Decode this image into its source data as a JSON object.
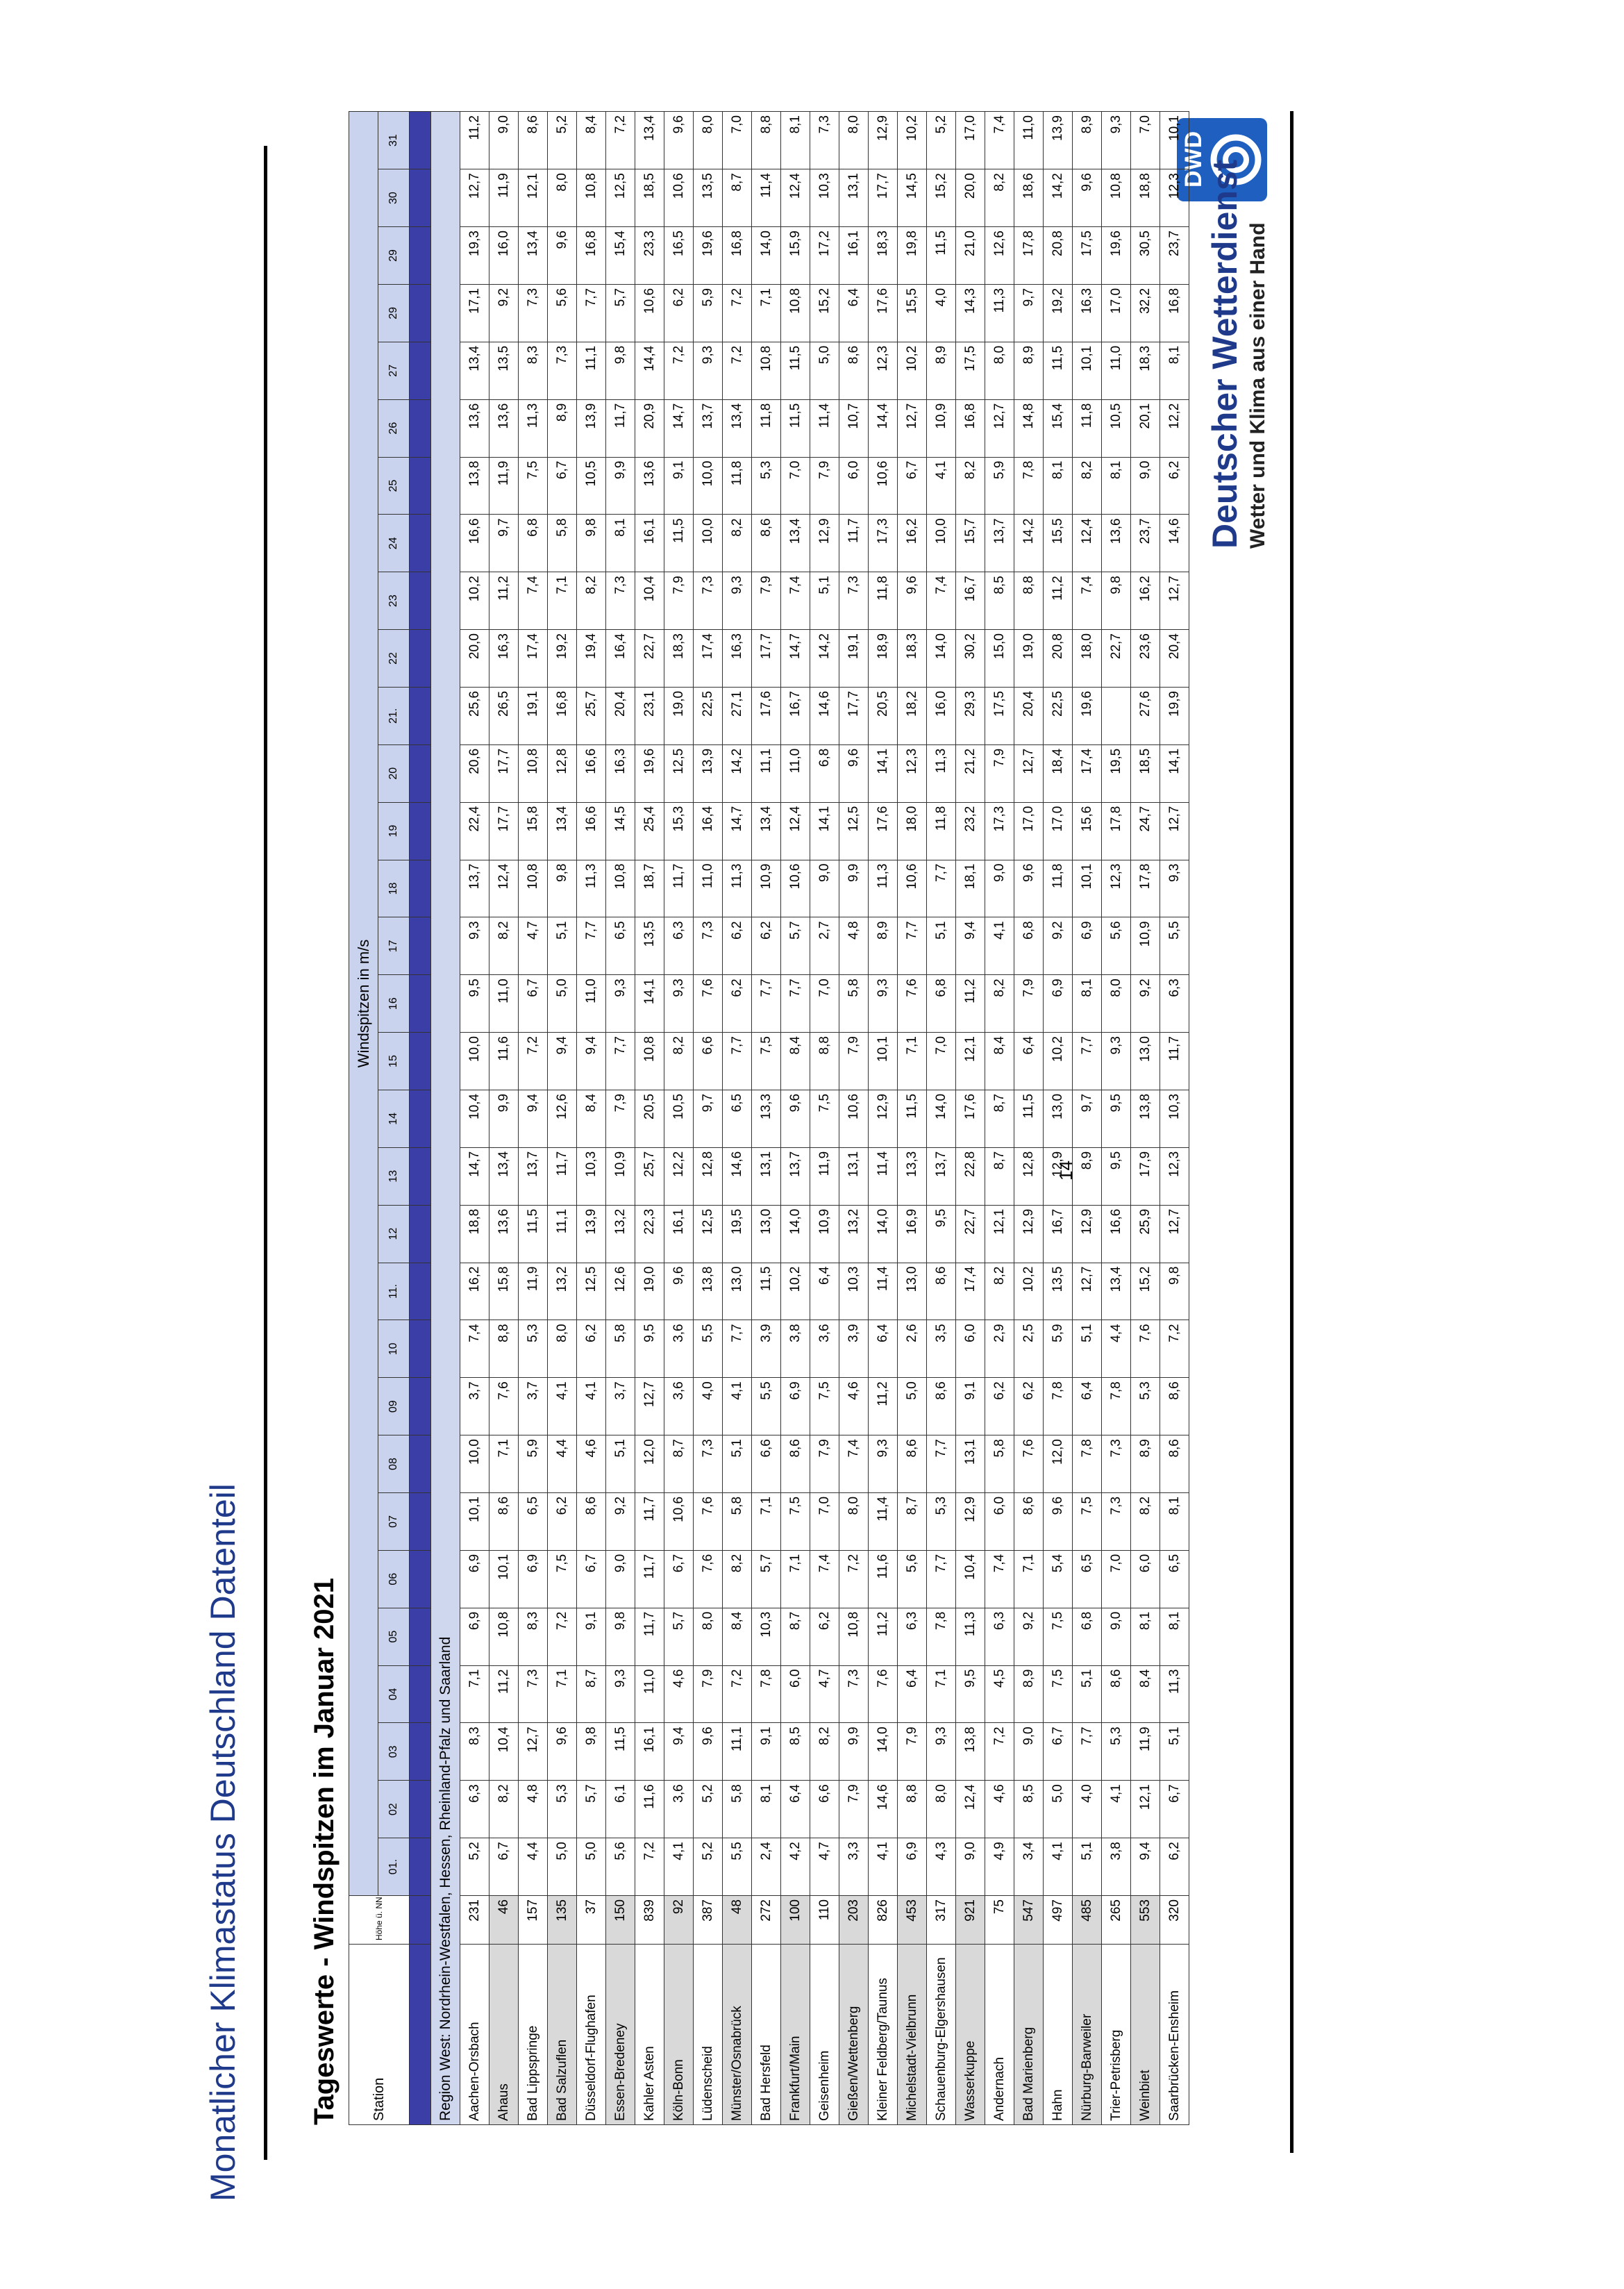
{
  "page": {
    "title": "Monatlicher Klimastatus Deutschland Datenteil",
    "page_number": "14"
  },
  "brand": {
    "logo_text": "DWD",
    "name": "Deutscher Wetterdienst",
    "tagline": "Wetter und Klima aus einer Hand",
    "color": "#1f3a8a"
  },
  "sheet": {
    "title": "Tageswerte - Windspitzen im Januar 2021",
    "group_header": "Windspitzen in m/s",
    "col_station": "Station",
    "col_height": "Höhe ü. NN in m",
    "days": [
      "01.",
      "02",
      "03",
      "04",
      "05",
      "06",
      "07",
      "08",
      "09",
      "10",
      "11.",
      "12",
      "13",
      "14",
      "15",
      "16",
      "17",
      "18",
      "19",
      "20",
      "21.",
      "22",
      "23",
      "24",
      "25",
      "26",
      "27",
      "29",
      "29",
      "30",
      "31"
    ],
    "region": "Region West: Nordrhein-Westfalen, Hessen, Rheinland-Pfalz und Saarland"
  },
  "rows": [
    {
      "station": "Aachen-Orsbach",
      "height": "231",
      "v": [
        "5,2",
        "6,3",
        "8,3",
        "7,1",
        "6,9",
        "6,9",
        "10,1",
        "10,0",
        "3,7",
        "7,4",
        "16,2",
        "18,8",
        "14,7",
        "10,4",
        "10,0",
        "9,5",
        "9,3",
        "13,7",
        "22,4",
        "20,6",
        "25,6",
        "20,0",
        "10,2",
        "16,6",
        "13,8",
        "13,6",
        "13,4",
        "17,1",
        "19,3",
        "12,7",
        "11,2"
      ]
    },
    {
      "station": "Ahaus",
      "height": "46",
      "v": [
        "6,7",
        "8,2",
        "10,4",
        "11,2",
        "10,8",
        "10,1",
        "8,6",
        "7,1",
        "7,6",
        "8,8",
        "15,8",
        "13,6",
        "13,4",
        "9,9",
        "11,6",
        "11,0",
        "8,2",
        "12,4",
        "17,7",
        "17,7",
        "26,5",
        "16,3",
        "11,2",
        "9,7",
        "11,9",
        "13,6",
        "13,5",
        "9,2",
        "16,0",
        "11,9",
        "9,0"
      ]
    },
    {
      "station": "Bad Lippspringe",
      "height": "157",
      "v": [
        "4,4",
        "4,8",
        "12,7",
        "7,3",
        "8,3",
        "6,9",
        "6,5",
        "5,9",
        "3,7",
        "5,3",
        "11,9",
        "11,5",
        "13,7",
        "9,4",
        "7,2",
        "6,7",
        "4,7",
        "10,8",
        "15,8",
        "10,8",
        "19,1",
        "17,4",
        "7,4",
        "6,8",
        "7,5",
        "11,3",
        "8,3",
        "7,3",
        "13,4",
        "12,1",
        "8,6"
      ]
    },
    {
      "station": "Bad Salzuflen",
      "height": "135",
      "v": [
        "5,0",
        "5,3",
        "9,6",
        "7,1",
        "7,2",
        "7,5",
        "6,2",
        "4,4",
        "4,1",
        "8,0",
        "13,2",
        "11,1",
        "11,7",
        "12,6",
        "9,4",
        "5,0",
        "5,1",
        "9,8",
        "13,4",
        "12,8",
        "16,8",
        "19,2",
        "7,1",
        "5,8",
        "6,7",
        "8,9",
        "7,3",
        "5,6",
        "9,6",
        "8,0",
        "5,2"
      ]
    },
    {
      "station": "Düsseldorf-Flughafen",
      "height": "37",
      "v": [
        "5,0",
        "5,7",
        "9,8",
        "8,7",
        "9,1",
        "6,7",
        "8,6",
        "4,6",
        "4,1",
        "6,2",
        "12,5",
        "13,9",
        "10,3",
        "8,4",
        "9,4",
        "11,0",
        "7,7",
        "11,3",
        "16,6",
        "16,6",
        "25,7",
        "19,4",
        "8,2",
        "9,8",
        "10,5",
        "13,9",
        "11,1",
        "7,7",
        "16,8",
        "10,8",
        "8,4"
      ]
    },
    {
      "station": "Essen-Bredeney",
      "height": "150",
      "v": [
        "5,6",
        "6,1",
        "11,5",
        "9,3",
        "9,8",
        "9,0",
        "9,2",
        "5,1",
        "3,7",
        "5,8",
        "12,6",
        "13,2",
        "10,9",
        "7,9",
        "7,7",
        "9,3",
        "6,5",
        "10,8",
        "14,5",
        "16,3",
        "20,4",
        "16,4",
        "7,3",
        "8,1",
        "9,9",
        "11,7",
        "9,8",
        "5,7",
        "15,4",
        "12,5",
        "7,2"
      ]
    },
    {
      "station": "Kahler Asten",
      "height": "839",
      "v": [
        "7,2",
        "11,6",
        "16,1",
        "11,0",
        "11,7",
        "11,7",
        "11,7",
        "12,0",
        "12,7",
        "9,5",
        "19,0",
        "22,3",
        "25,7",
        "20,5",
        "10,8",
        "14,1",
        "13,5",
        "18,7",
        "25,4",
        "19,6",
        "23,1",
        "22,7",
        "10,4",
        "16,1",
        "13,6",
        "20,9",
        "14,4",
        "10,6",
        "23,3",
        "18,5",
        "13,4"
      ]
    },
    {
      "station": "Köln-Bonn",
      "height": "92",
      "v": [
        "4,1",
        "3,6",
        "9,4",
        "4,6",
        "5,7",
        "6,7",
        "10,6",
        "8,7",
        "3,6",
        "3,6",
        "9,6",
        "16,1",
        "12,2",
        "10,5",
        "8,2",
        "9,3",
        "6,3",
        "11,7",
        "15,3",
        "12,5",
        "19,0",
        "18,3",
        "7,9",
        "11,5",
        "9,1",
        "14,7",
        "7,2",
        "6,2",
        "16,5",
        "10,6",
        "9,6"
      ]
    },
    {
      "station": "Lüdenscheid",
      "height": "387",
      "v": [
        "5,2",
        "5,2",
        "9,6",
        "7,9",
        "8,0",
        "7,6",
        "7,6",
        "7,3",
        "4,0",
        "5,5",
        "13,8",
        "12,5",
        "12,8",
        "9,7",
        "6,6",
        "7,6",
        "7,3",
        "11,0",
        "16,4",
        "13,9",
        "22,5",
        "17,4",
        "7,3",
        "10,0",
        "10,0",
        "13,7",
        "9,3",
        "5,9",
        "19,6",
        "13,5",
        "8,0"
      ]
    },
    {
      "station": "Münster/Osnabrück",
      "height": "48",
      "v": [
        "5,5",
        "5,8",
        "11,1",
        "7,2",
        "8,4",
        "8,2",
        "5,8",
        "5,1",
        "4,1",
        "7,7",
        "13,0",
        "19,5",
        "14,6",
        "6,5",
        "7,7",
        "6,2",
        "6,2",
        "11,3",
        "14,7",
        "14,2",
        "27,1",
        "16,3",
        "9,3",
        "8,2",
        "11,8",
        "13,4",
        "7,2",
        "7,2",
        "16,8",
        "8,7",
        "7,0"
      ]
    },
    {
      "station": "Bad Hersfeld",
      "height": "272",
      "v": [
        "2,4",
        "8,1",
        "9,1",
        "7,8",
        "10,3",
        "5,7",
        "7,1",
        "6,6",
        "5,5",
        "3,9",
        "11,5",
        "13,0",
        "13,1",
        "13,3",
        "7,5",
        "7,7",
        "6,2",
        "10,9",
        "13,4",
        "11,1",
        "17,6",
        "17,7",
        "7,9",
        "8,6",
        "5,3",
        "11,8",
        "10,8",
        "7,1",
        "14,0",
        "11,4",
        "8,8"
      ]
    },
    {
      "station": "Frankfurt/Main",
      "height": "100",
      "v": [
        "4,2",
        "6,4",
        "8,5",
        "6,0",
        "8,7",
        "7,1",
        "7,5",
        "8,6",
        "6,9",
        "3,8",
        "10,2",
        "14,0",
        "13,7",
        "9,6",
        "8,4",
        "7,7",
        "5,7",
        "10,6",
        "12,4",
        "11,0",
        "16,7",
        "14,7",
        "7,4",
        "13,4",
        "7,0",
        "11,5",
        "11,5",
        "10,8",
        "15,9",
        "12,4",
        "8,1"
      ]
    },
    {
      "station": "Geisenheim",
      "height": "110",
      "v": [
        "4,7",
        "6,6",
        "8,2",
        "4,7",
        "6,2",
        "7,4",
        "7,0",
        "7,9",
        "7,5",
        "3,6",
        "6,4",
        "10,9",
        "11,9",
        "7,5",
        "8,8",
        "7,0",
        "2,7",
        "9,0",
        "14,1",
        "6,8",
        "14,6",
        "14,2",
        "5,1",
        "12,9",
        "7,9",
        "11,4",
        "5,0",
        "15,2",
        "17,2",
        "10,3",
        "7,3"
      ]
    },
    {
      "station": "Gießen/Wettenberg",
      "height": "203",
      "v": [
        "3,3",
        "7,9",
        "9,9",
        "7,3",
        "10,8",
        "7,2",
        "8,0",
        "7,4",
        "4,6",
        "3,9",
        "10,3",
        "13,2",
        "13,1",
        "10,6",
        "7,9",
        "5,8",
        "4,8",
        "9,9",
        "12,5",
        "9,6",
        "17,7",
        "19,1",
        "7,3",
        "11,7",
        "6,0",
        "10,7",
        "8,6",
        "6,4",
        "16,1",
        "13,1",
        "8,0"
      ]
    },
    {
      "station": "Kleiner Feldberg/Taunus",
      "height": "826",
      "v": [
        "4,1",
        "14,6",
        "14,0",
        "7,6",
        "11,2",
        "11,6",
        "11,4",
        "9,3",
        "11,2",
        "6,4",
        "11,4",
        "14,0",
        "11,4",
        "12,9",
        "10,1",
        "9,3",
        "8,9",
        "11,3",
        "17,6",
        "14,1",
        "20,5",
        "18,9",
        "11,8",
        "17,3",
        "10,6",
        "14,4",
        "12,3",
        "17,6",
        "18,3",
        "17,7",
        "12,9"
      ]
    },
    {
      "station": "Michelstadt-Vielbrunn",
      "height": "453",
      "v": [
        "6,9",
        "8,8",
        "7,9",
        "6,4",
        "6,3",
        "5,6",
        "8,7",
        "8,6",
        "5,0",
        "2,6",
        "13,0",
        "16,9",
        "13,3",
        "11,5",
        "7,1",
        "7,6",
        "7,7",
        "10,6",
        "18,0",
        "12,3",
        "18,2",
        "18,3",
        "9,6",
        "16,2",
        "6,7",
        "12,7",
        "10,2",
        "15,5",
        "19,8",
        "14,5",
        "10,2"
      ]
    },
    {
      "station": "Schauenburg-Elgershausen",
      "height": "317",
      "v": [
        "4,3",
        "8,0",
        "9,3",
        "7,1",
        "7,8",
        "7,7",
        "5,3",
        "7,7",
        "8,6",
        "3,5",
        "8,6",
        "9,5",
        "13,7",
        "14,0",
        "7,0",
        "6,8",
        "5,1",
        "7,7",
        "11,8",
        "11,3",
        "16,0",
        "14,0",
        "7,4",
        "10,0",
        "4,1",
        "10,9",
        "8,9",
        "4,0",
        "11,5",
        "15,2",
        "5,2"
      ]
    },
    {
      "station": "Wasserkuppe",
      "height": "921",
      "v": [
        "9,0",
        "12,4",
        "13,8",
        "9,5",
        "11,3",
        "10,4",
        "12,9",
        "13,1",
        "9,1",
        "6,0",
        "17,4",
        "22,7",
        "22,8",
        "17,6",
        "12,1",
        "11,2",
        "9,4",
        "18,1",
        "23,2",
        "21,2",
        "29,3",
        "30,2",
        "16,7",
        "15,7",
        "8,2",
        "16,8",
        "17,5",
        "14,3",
        "21,0",
        "20,0",
        "17,0"
      ]
    },
    {
      "station": "Andernach",
      "height": "75",
      "v": [
        "4,9",
        "4,6",
        "7,2",
        "4,5",
        "6,3",
        "7,4",
        "6,0",
        "5,8",
        "6,2",
        "2,9",
        "8,2",
        "12,1",
        "8,7",
        "8,7",
        "8,4",
        "8,2",
        "4,1",
        "9,0",
        "17,3",
        "7,9",
        "17,5",
        "15,0",
        "8,5",
        "13,7",
        "5,9",
        "12,7",
        "8,0",
        "11,3",
        "12,6",
        "8,2",
        "7,4"
      ]
    },
    {
      "station": "Bad Marienberg",
      "height": "547",
      "v": [
        "3,4",
        "8,5",
        "9,0",
        "8,9",
        "9,2",
        "7,1",
        "8,6",
        "7,6",
        "6,2",
        "2,5",
        "10,2",
        "12,9",
        "12,8",
        "11,5",
        "6,4",
        "7,9",
        "6,8",
        "9,6",
        "17,0",
        "12,7",
        "20,4",
        "19,0",
        "8,8",
        "14,2",
        "7,8",
        "14,8",
        "8,9",
        "9,7",
        "17,8",
        "18,6",
        "11,0"
      ]
    },
    {
      "station": "Hahn",
      "height": "497",
      "v": [
        "4,1",
        "5,0",
        "6,7",
        "7,5",
        "7,5",
        "5,4",
        "9,6",
        "12,0",
        "7,8",
        "5,9",
        "13,5",
        "16,7",
        "12,9",
        "13,0",
        "10,2",
        "6,9",
        "9,2",
        "11,8",
        "17,0",
        "18,4",
        "22,5",
        "20,8",
        "11,2",
        "15,5",
        "8,1",
        "15,4",
        "11,5",
        "19,2",
        "20,8",
        "14,2",
        "13,9"
      ]
    },
    {
      "station": "Nürburg-Barweiler",
      "height": "485",
      "v": [
        "5,1",
        "4,0",
        "7,7",
        "5,1",
        "6,8",
        "6,5",
        "7,5",
        "7,8",
        "6,4",
        "5,1",
        "12,7",
        "12,9",
        "8,9",
        "9,7",
        "7,7",
        "8,1",
        "6,9",
        "10,1",
        "15,6",
        "17,4",
        "19,6",
        "18,0",
        "7,4",
        "12,4",
        "8,2",
        "11,8",
        "10,1",
        "16,3",
        "17,5",
        "9,6",
        "8,9"
      ]
    },
    {
      "station": "Trier-Petrisberg",
      "height": "265",
      "v": [
        "3,8",
        "4,1",
        "5,3",
        "8,6",
        "9,0",
        "7,0",
        "7,3",
        "7,3",
        "7,8",
        "4,4",
        "13,4",
        "16,6",
        "9,5",
        "9,5",
        "9,3",
        "8,0",
        "5,6",
        "12,3",
        "17,8",
        "19,5",
        "",
        "22,7",
        "9,8",
        "13,6",
        "8,1",
        "10,5",
        "11,0",
        "17,0",
        "19,6",
        "10,8",
        "9,3"
      ]
    },
    {
      "station": "Weinbiet",
      "height": "553",
      "v": [
        "9,4",
        "12,1",
        "11,9",
        "8,4",
        "8,1",
        "6,0",
        "8,2",
        "8,9",
        "5,3",
        "7,6",
        "15,2",
        "25,9",
        "17,9",
        "13,8",
        "13,0",
        "9,2",
        "10,9",
        "17,8",
        "24,7",
        "18,5",
        "27,6",
        "23,6",
        "16,2",
        "23,7",
        "9,0",
        "20,1",
        "18,3",
        "32,2",
        "30,5",
        "18,8",
        "7,0"
      ]
    },
    {
      "station": "Saarbrücken-Ensheim",
      "height": "320",
      "v": [
        "6,2",
        "6,7",
        "5,1",
        "11,3",
        "8,1",
        "6,5",
        "8,1",
        "8,6",
        "8,6",
        "7,2",
        "9,8",
        "12,7",
        "12,3",
        "10,3",
        "11,7",
        "6,3",
        "5,5",
        "9,3",
        "12,7",
        "14,1",
        "19,9",
        "20,4",
        "12,7",
        "14,6",
        "6,2",
        "12,2",
        "8,1",
        "16,8",
        "23,7",
        "12,3",
        "10,1"
      ]
    }
  ]
}
